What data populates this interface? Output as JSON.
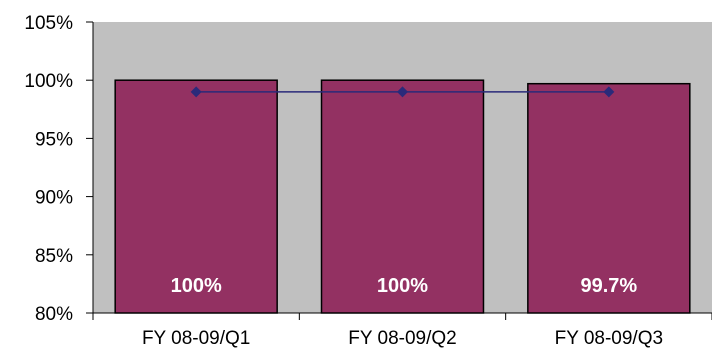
{
  "chart_data": {
    "type": "bar",
    "categories": [
      "FY 08-09/Q1",
      "FY 08-09/Q2",
      "FY 08-09/Q3"
    ],
    "series": [
      {
        "type": "bar",
        "values": [
          100,
          100,
          99.7
        ],
        "labels": [
          "100%",
          "100%",
          "99.7%"
        ],
        "color": "#933162"
      },
      {
        "type": "line",
        "values": [
          99,
          99,
          99
        ],
        "color": "#2a2a7a"
      }
    ],
    "ylim": [
      80,
      105
    ],
    "yticks": [
      80,
      85,
      90,
      95,
      100,
      105
    ],
    "ytick_labels": [
      "80%",
      "85%",
      "90%",
      "95%",
      "100%",
      "105%"
    ],
    "plot_background": "#c0c0c0",
    "grid": false,
    "legend": "none",
    "title": "",
    "xlabel": "",
    "ylabel": ""
  }
}
